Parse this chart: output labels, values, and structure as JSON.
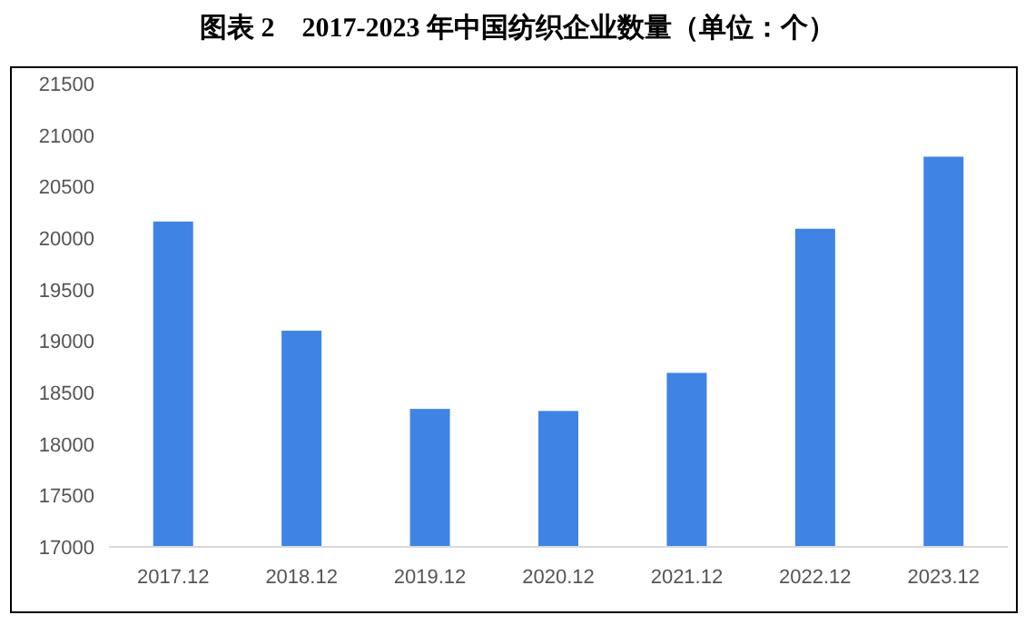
{
  "chart_data": {
    "type": "bar",
    "title": "图表 2　2017-2023 年中国纺织企业数量（单位：个）",
    "categories": [
      "2017.12",
      "2018.12",
      "2019.12",
      "2020.12",
      "2021.12",
      "2022.12",
      "2023.12"
    ],
    "values": [
      20160,
      19100,
      18340,
      18320,
      18690,
      20090,
      20790
    ],
    "color": "#3f84e5",
    "ylim": [
      17000,
      21500
    ],
    "yticks": [
      17000,
      17500,
      18000,
      18500,
      19000,
      19500,
      20000,
      20500,
      21000,
      21500
    ]
  }
}
